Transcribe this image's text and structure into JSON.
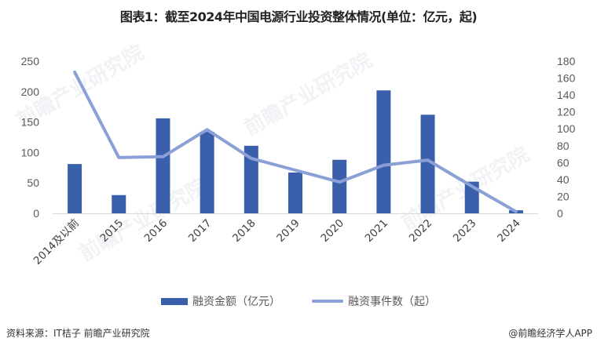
{
  "title": "图表1：截至2024年中国电源行业投资整体情况(单位：亿元，起)",
  "colors": {
    "bar": "#3a60ab",
    "line": "#8aa0d6",
    "axis": "#d9d9d9"
  },
  "legend": {
    "bar_label": "融资金额（亿元）",
    "line_label": "融资事件数（起）"
  },
  "footer": {
    "source": "资料来源：IT桔子 前瞻产业研究院",
    "credit": "@前瞻经济学人APP"
  },
  "watermark": "前瞻产业研究院",
  "chart_data": {
    "type": "bar+line",
    "title": "图表1：截至2024年中国电源行业投资整体情况(单位：亿元，起)",
    "categories": [
      "2014及以前",
      "2015",
      "2016",
      "2017",
      "2018",
      "2019",
      "2020",
      "2021",
      "2022",
      "2023",
      "2024"
    ],
    "series": [
      {
        "name": "融资金额（亿元）",
        "type": "bar",
        "axis": "left",
        "values": [
          81,
          30,
          156,
          134,
          111,
          67,
          88,
          202,
          162,
          52,
          5
        ]
      },
      {
        "name": "融资事件数（起）",
        "type": "line",
        "axis": "right",
        "values": [
          167,
          66,
          67,
          99,
          65,
          51,
          37,
          57,
          63,
          32,
          2
        ]
      }
    ],
    "y_left": {
      "ticks": [
        0,
        50,
        100,
        150,
        200,
        250
      ],
      "ylim": [
        0,
        250
      ]
    },
    "y_right": {
      "ticks": [
        0,
        20,
        40,
        60,
        80,
        100,
        120,
        140,
        160,
        180
      ],
      "ylim": [
        0,
        180
      ]
    },
    "xlabel": "",
    "ylabel": "",
    "grid": false,
    "legend_position": "bottom"
  }
}
